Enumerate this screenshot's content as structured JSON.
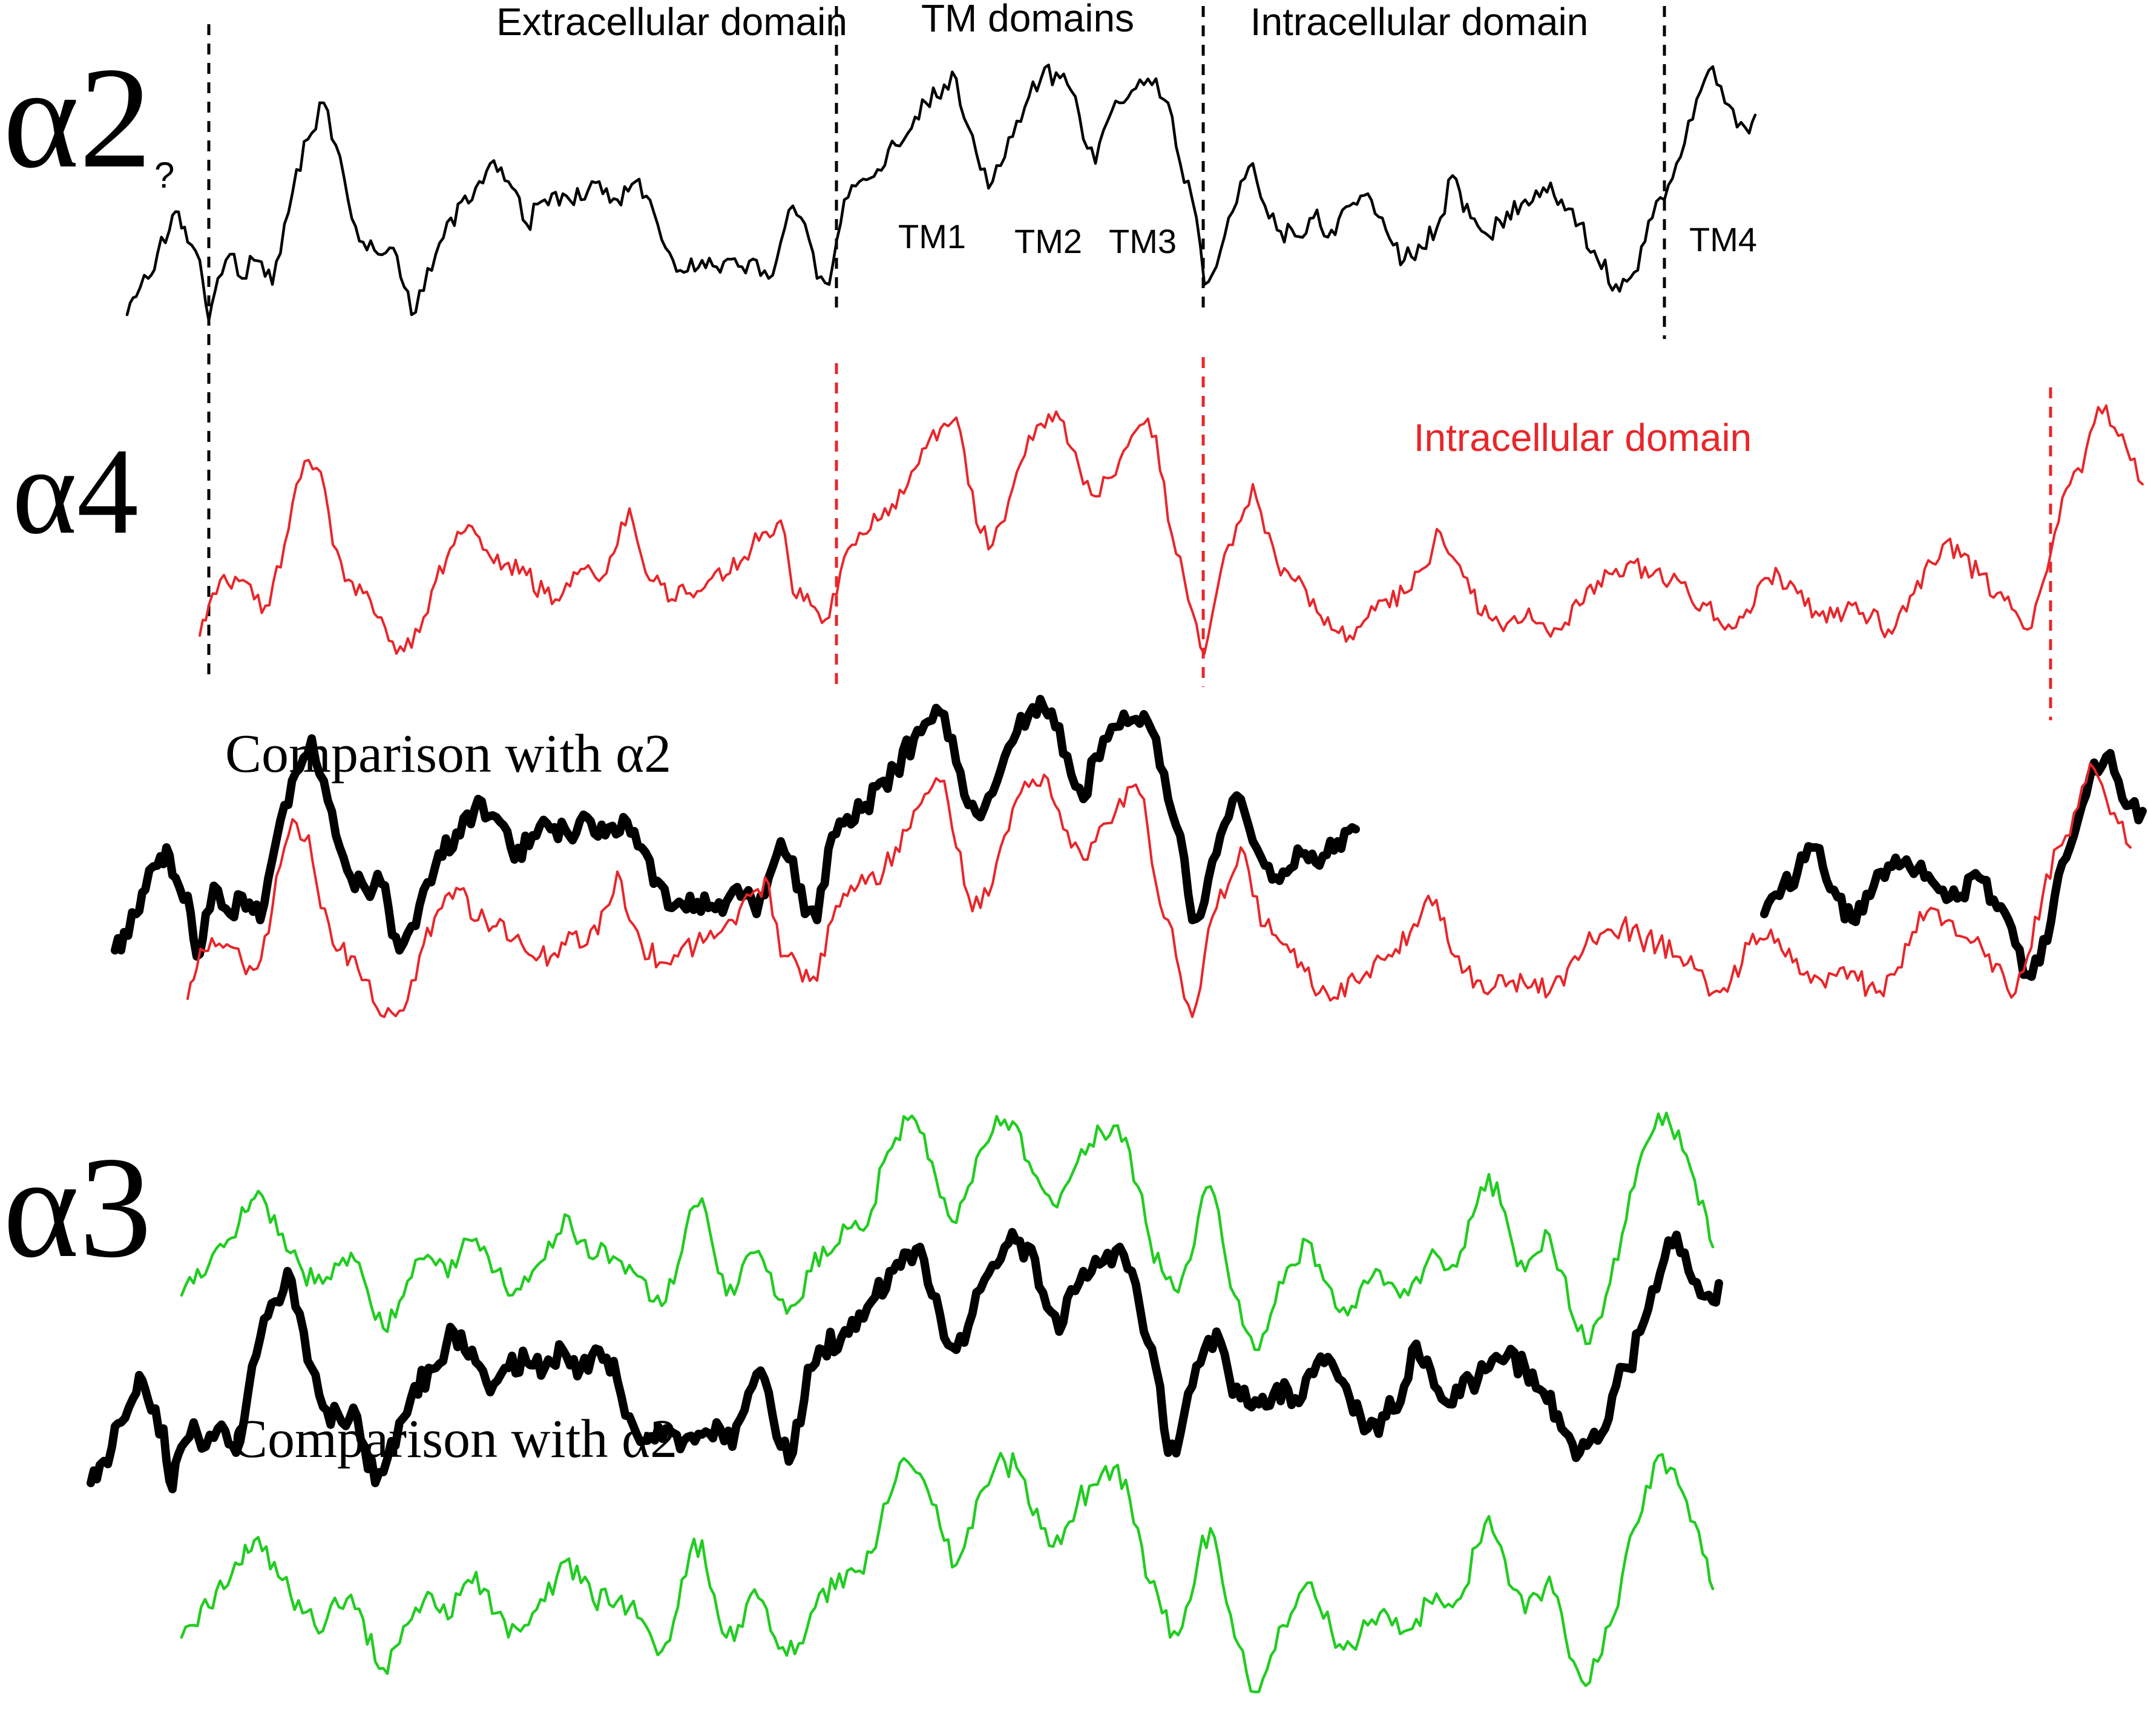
{
  "labels": {
    "alpha2": "α2",
    "alpha4": "α4",
    "alpha3": "α3",
    "question_mark": "?",
    "comparison_1": "Comparison with α2",
    "comparison_2": "Comparison with α2"
  },
  "alpha2_regions": {
    "extracellular": "Extracellular domain",
    "tm_domains": "TM domains",
    "intracellular": "Intracellular domain",
    "tm1": "TM1",
    "tm2": "TM2",
    "tm3": "TM3",
    "tm4": "TM4"
  },
  "alpha4_regions": {
    "intracellular": "Intracellular domain"
  },
  "colors": {
    "alpha2": "#000000",
    "alpha4": "#e8262a",
    "alpha3": "#22cc22",
    "background": "#ffffff"
  }
}
